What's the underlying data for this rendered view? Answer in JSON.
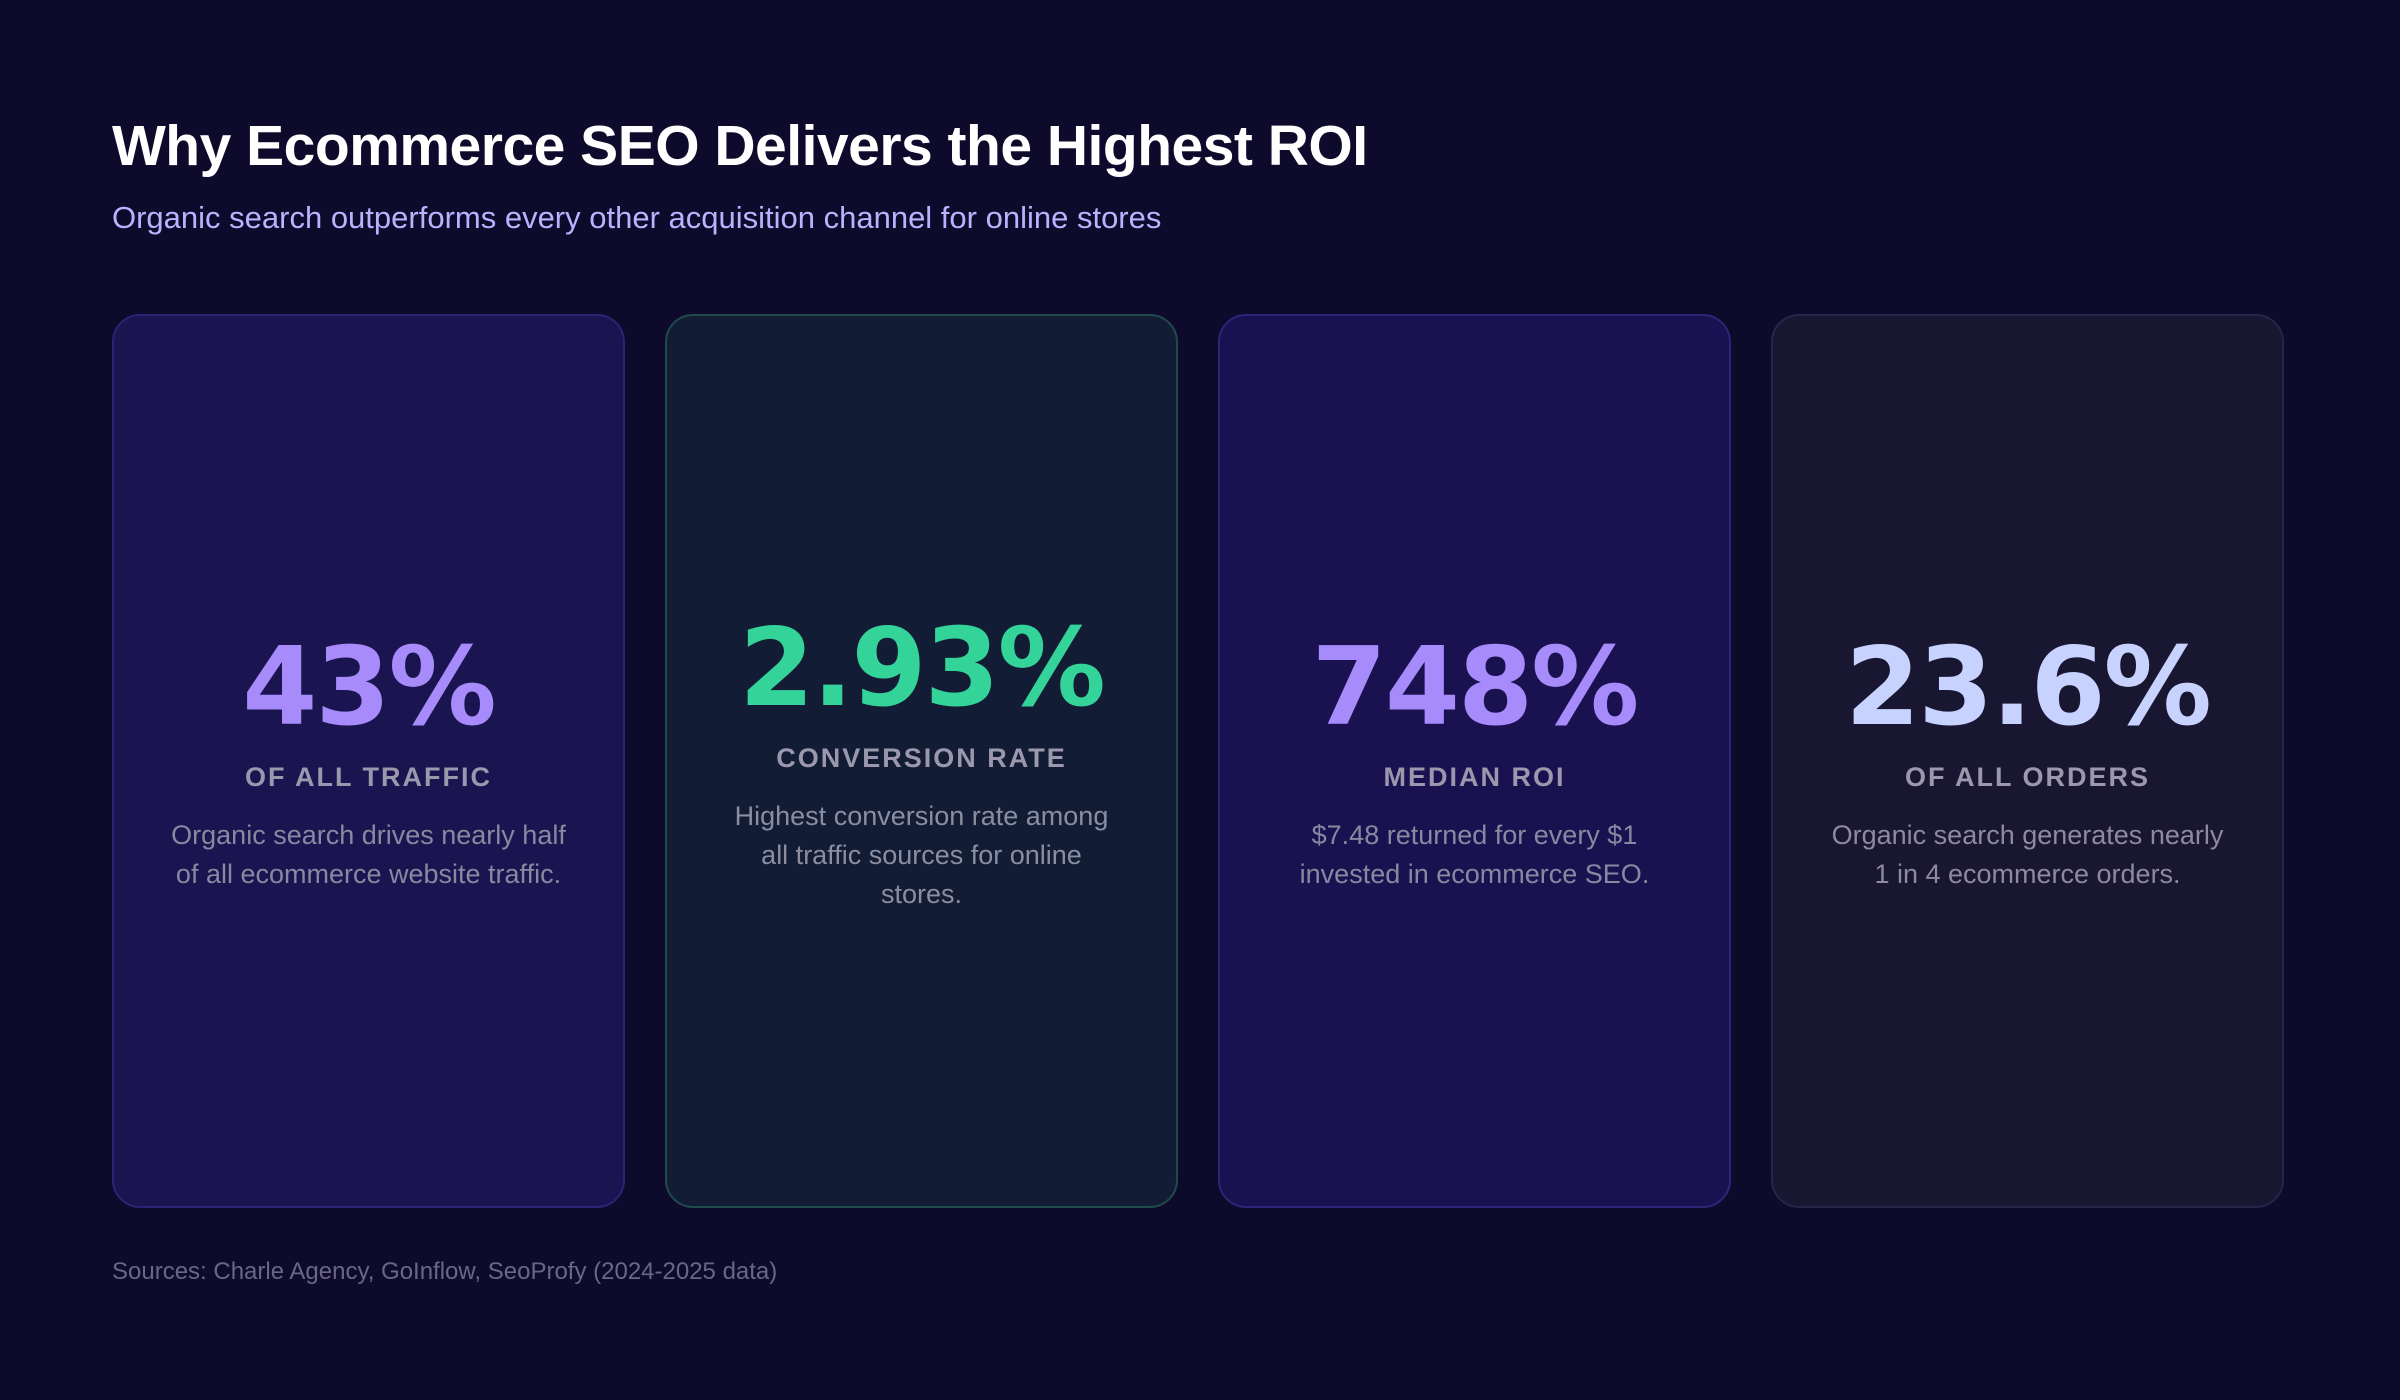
{
  "header": {
    "title": "Why Ecommerce SEO Delivers the Highest ROI",
    "subtitle": "Organic search outperforms every other acquisition channel for online stores"
  },
  "cards": [
    {
      "stat": "43%",
      "label": "OF ALL TRAFFIC",
      "description": "Organic search drives nearly half of all ecommerce website traffic.",
      "accent_color": "#a78bfa"
    },
    {
      "stat": "2.93%",
      "label": "CONVERSION RATE",
      "description": "Highest conversion rate among all traffic sources for online stores.",
      "accent_color": "#34d399"
    },
    {
      "stat": "748%",
      "label": "MEDIAN ROI",
      "description": "$7.48 returned for every $1 invested in ecommerce SEO.",
      "accent_color": "#a78bfa"
    },
    {
      "stat": "23.6%",
      "label": "OF ALL ORDERS",
      "description": "Organic search generates nearly 1 in 4 ecommerce orders.",
      "accent_color": "#c7d2fe"
    }
  ],
  "footer": {
    "sources": "Sources: Charle Agency, GoInflow, SeoProfy (2024-2025 data)"
  }
}
